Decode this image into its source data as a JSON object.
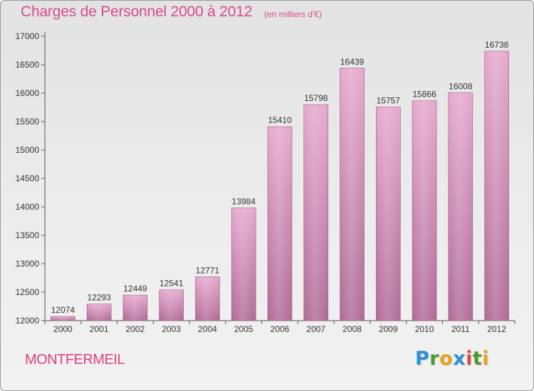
{
  "header": {
    "title": "Charges de Personnel 2000 à 2012",
    "subtitle": "(en milliers d'€)"
  },
  "footer": {
    "place": "MONTFERMEIL",
    "logo_letters": [
      {
        "char": "P",
        "color": "#2f8fd6"
      },
      {
        "char": "r",
        "color": "#4a9a2a"
      },
      {
        "char": "o",
        "color": "#e8a21a"
      },
      {
        "char": "x",
        "color": "#2f8fd6"
      },
      {
        "char": "i",
        "color": "#e04a3a"
      },
      {
        "char": "t",
        "color": "#4a9a2a"
      },
      {
        "char": "i",
        "color": "#e8a21a"
      }
    ]
  },
  "colors": {
    "bar_top": "#e6a8cd",
    "bar_bottom": "#b06a96",
    "axis": "#555555",
    "accent": "#d64c88"
  },
  "chart_data": {
    "type": "bar",
    "title": "Charges de Personnel 2000 à 2012",
    "subtitle": "(en milliers d'€)",
    "xlabel": "",
    "ylabel": "",
    "ylim": [
      12000,
      17000
    ],
    "yticks": [
      12000,
      12500,
      13000,
      13500,
      14000,
      14500,
      15000,
      15500,
      16000,
      16500,
      17000
    ],
    "grid": false,
    "categories": [
      "2000",
      "2001",
      "2002",
      "2003",
      "2004",
      "2005",
      "2006",
      "2007",
      "2008",
      "2009",
      "2010",
      "2011",
      "2012"
    ],
    "values": [
      12074,
      12293,
      12449,
      12541,
      12771,
      13984,
      15410,
      15798,
      16439,
      15757,
      15866,
      16008,
      16738
    ]
  }
}
